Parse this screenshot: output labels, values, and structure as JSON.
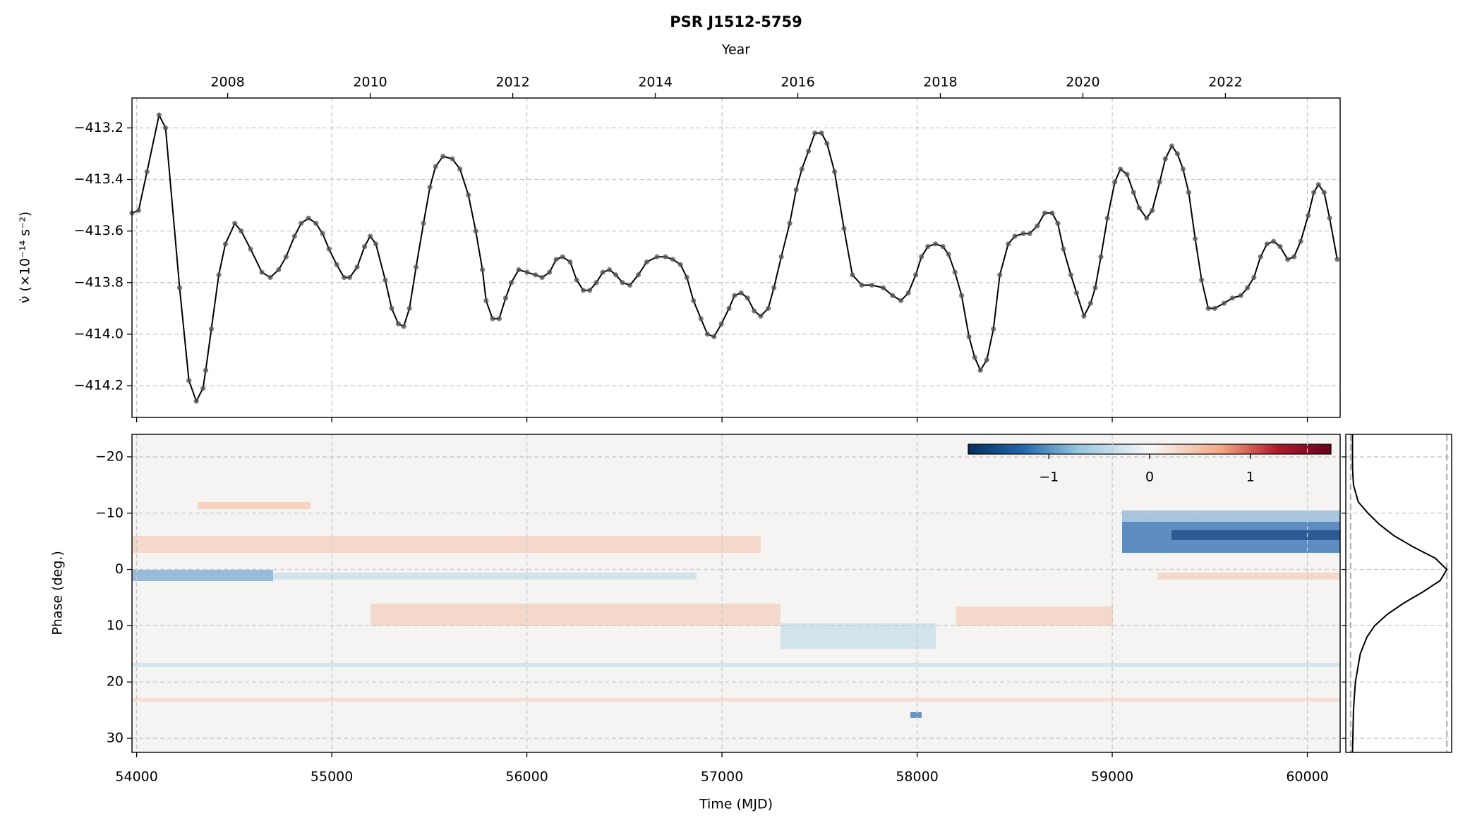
{
  "chart_data": [
    {
      "type": "line",
      "title": "PSR J1512-5759",
      "x2label": "Year",
      "ylabel": "ν̇ (×10⁻¹⁴ s⁻²)",
      "color": "#000000",
      "marker_color": "#555555",
      "grid": true,
      "xlim": [
        53976,
        60168
      ],
      "xticks": [
        54000,
        55000,
        56000,
        57000,
        58000,
        59000,
        60000
      ],
      "x2ticks": [
        2008,
        2010,
        2012,
        2014,
        2016,
        2018,
        2020,
        2022
      ],
      "ylim": [
        -414.323,
        -413.084
      ],
      "yticks": [
        {
          "value": -413.2,
          "label": "−413.2"
        },
        {
          "value": -413.4,
          "label": "−413.4"
        },
        {
          "value": -413.6,
          "label": "−413.6"
        },
        {
          "value": -413.8,
          "label": "−413.8"
        },
        {
          "value": -414.0,
          "label": "−414.0"
        },
        {
          "value": -414.2,
          "label": "−414.2"
        }
      ],
      "x": [
        53976,
        54010,
        54053,
        54115,
        54148,
        54220,
        54268,
        54306,
        54340,
        54354,
        54383,
        54421,
        54455,
        54503,
        54536,
        54584,
        54642,
        54685,
        54728,
        54766,
        54809,
        54843,
        54881,
        54919,
        54953,
        54986,
        55025,
        55063,
        55092,
        55130,
        55168,
        55197,
        55226,
        55274,
        55307,
        55341,
        55369,
        55398,
        55432,
        55470,
        55503,
        55532,
        55570,
        55618,
        55657,
        55700,
        55738,
        55772,
        55791,
        55824,
        55858,
        55891,
        55920,
        55958,
        56001,
        56044,
        56078,
        56116,
        56150,
        56183,
        56222,
        56255,
        56289,
        56322,
        56356,
        56389,
        56423,
        56456,
        56490,
        56528,
        56571,
        56614,
        56667,
        56710,
        56748,
        56787,
        56820,
        56854,
        56892,
        56925,
        56959,
        56997,
        57036,
        57064,
        57098,
        57131,
        57165,
        57198,
        57237,
        57266,
        57304,
        57347,
        57380,
        57409,
        57443,
        57476,
        57510,
        57538,
        57577,
        57625,
        57668,
        57716,
        57768,
        57826,
        57874,
        57917,
        57955,
        57993,
        58022,
        58055,
        58094,
        58132,
        58161,
        58194,
        58228,
        58266,
        58295,
        58324,
        58357,
        58391,
        58424,
        58467,
        58501,
        58544,
        58577,
        58616,
        58654,
        58692,
        58721,
        58750,
        58788,
        58817,
        58855,
        58889,
        58913,
        58942,
        58975,
        59013,
        59042,
        59076,
        59109,
        59138,
        59176,
        59205,
        59243,
        59272,
        59305,
        59334,
        59363,
        59392,
        59425,
        59458,
        59492,
        59526,
        59573,
        59616,
        59659,
        59693,
        59726,
        59760,
        59793,
        59827,
        59860,
        59899,
        59932,
        59966,
        60004,
        60033,
        60057,
        60086,
        60114,
        60153
      ],
      "values": [
        -413.53,
        -413.52,
        -413.37,
        -413.15,
        -413.2,
        -413.82,
        -414.18,
        -414.26,
        -414.21,
        -414.14,
        -413.98,
        -413.77,
        -413.65,
        -413.57,
        -413.6,
        -413.67,
        -413.76,
        -413.78,
        -413.75,
        -413.7,
        -413.62,
        -413.57,
        -413.55,
        -413.57,
        -413.61,
        -413.67,
        -413.73,
        -413.78,
        -413.78,
        -413.74,
        -413.66,
        -413.62,
        -413.65,
        -413.79,
        -413.9,
        -413.96,
        -413.97,
        -413.9,
        -413.74,
        -413.57,
        -413.43,
        -413.35,
        -413.31,
        -413.32,
        -413.36,
        -413.46,
        -413.6,
        -413.75,
        -413.87,
        -413.94,
        -413.94,
        -413.86,
        -413.8,
        -413.75,
        -413.76,
        -413.77,
        -413.78,
        -413.76,
        -413.71,
        -413.7,
        -413.72,
        -413.79,
        -413.83,
        -413.83,
        -413.8,
        -413.76,
        -413.75,
        -413.77,
        -413.8,
        -413.81,
        -413.77,
        -413.72,
        -413.7,
        -413.7,
        -413.71,
        -413.73,
        -413.78,
        -413.87,
        -413.94,
        -414.0,
        -414.01,
        -413.96,
        -413.9,
        -413.85,
        -413.84,
        -413.86,
        -413.91,
        -413.93,
        -413.9,
        -413.82,
        -413.7,
        -413.57,
        -413.44,
        -413.36,
        -413.29,
        -413.22,
        -413.22,
        -413.26,
        -413.37,
        -413.59,
        -413.77,
        -413.81,
        -413.81,
        -413.82,
        -413.85,
        -413.87,
        -413.84,
        -413.77,
        -413.7,
        -413.66,
        -413.65,
        -413.66,
        -413.69,
        -413.76,
        -413.85,
        -414.01,
        -414.09,
        -414.14,
        -414.1,
        -413.98,
        -413.77,
        -413.65,
        -413.62,
        -413.61,
        -413.61,
        -413.58,
        -413.53,
        -413.53,
        -413.57,
        -413.67,
        -413.77,
        -413.84,
        -413.93,
        -413.88,
        -413.82,
        -413.7,
        -413.55,
        -413.41,
        -413.36,
        -413.38,
        -413.45,
        -413.51,
        -413.55,
        -413.52,
        -413.41,
        -413.32,
        -413.27,
        -413.3,
        -413.36,
        -413.45,
        -413.63,
        -413.79,
        -413.9,
        -413.9,
        -413.88,
        -413.86,
        -413.85,
        -413.82,
        -413.78,
        -413.7,
        -413.65,
        -413.64,
        -413.66,
        -413.71,
        -413.7,
        -413.64,
        -413.54,
        -413.45,
        -413.42,
        -413.45,
        -413.55,
        -413.71
      ]
    },
    {
      "type": "heatmap",
      "xlabel": "Time (MJD)",
      "ylabel": "Phase (deg.)",
      "grid": true,
      "xlim": [
        53976,
        60168
      ],
      "xticks": [
        54000,
        55000,
        56000,
        57000,
        58000,
        59000,
        60000
      ],
      "ylim": [
        -24,
        32.5
      ],
      "y_inverted": true,
      "yticks": [
        {
          "value": -20,
          "label": "−20"
        },
        {
          "value": -10,
          "label": "−10"
        },
        0,
        10,
        20,
        30
      ],
      "colorbar": {
        "colormap": "RdBu_r",
        "lim": [
          -1.8,
          1.8
        ],
        "ticks": [
          {
            "value": -1,
            "label": "−1"
          },
          0,
          1
        ]
      }
    },
    {
      "type": "profile",
      "color": "#000000",
      "xlim": [
        -0.05,
        1.05
      ],
      "xticks": [
        0,
        1
      ],
      "grid": true,
      "phase": [
        -24,
        -18,
        -15,
        -12,
        -10,
        -8,
        -6,
        -4,
        -2,
        0,
        2,
        4,
        6,
        8,
        10,
        12,
        15,
        20,
        25,
        32.5
      ],
      "intensity": [
        0.02,
        0.02,
        0.03,
        0.08,
        0.18,
        0.3,
        0.45,
        0.65,
        0.88,
        1.0,
        0.93,
        0.75,
        0.55,
        0.38,
        0.25,
        0.17,
        0.1,
        0.05,
        0.03,
        0.02
      ]
    }
  ]
}
